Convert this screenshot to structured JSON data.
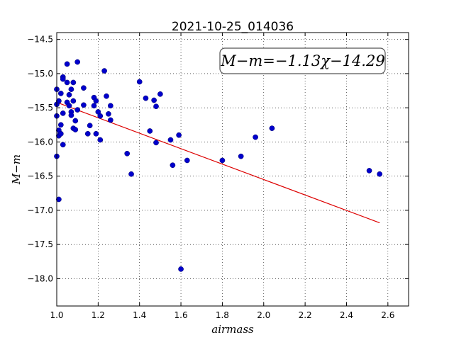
{
  "chart_data": {
    "type": "scatter",
    "title": "2021-10-25_014036",
    "xlabel": "airmass",
    "ylabel": "M−m",
    "xlim": [
      1.0,
      2.7
    ],
    "ylim": [
      -18.4,
      -14.4
    ],
    "y_inverted": true,
    "grid": true,
    "xticks": [
      1.0,
      1.2,
      1.4,
      1.6,
      1.8,
      2.0,
      2.2,
      2.4,
      2.6
    ],
    "xtick_labels": [
      "1.0",
      "1.2",
      "1.4",
      "1.6",
      "1.8",
      "2.0",
      "2.2",
      "2.4",
      "2.6"
    ],
    "yticks": [
      -14.5,
      -15.0,
      -15.5,
      -16.0,
      -16.5,
      -17.0,
      -17.5,
      -18.0
    ],
    "ytick_labels": [
      "−14.5",
      "−15.0",
      "−15.5",
      "−16.0",
      "−16.5",
      "−17.0",
      "−17.5",
      "−18.0"
    ],
    "annotation": "M−m=−1.13χ−14.29",
    "point_color": "#0000cc",
    "line_color": "#dd0000",
    "fit": {
      "slope": -1.13,
      "intercept": -14.29,
      "x_range": [
        1.01,
        2.56
      ]
    },
    "points": [
      [
        1.0,
        -15.23
      ],
      [
        1.0,
        -15.45
      ],
      [
        1.0,
        -15.62
      ],
      [
        1.0,
        -16.21
      ],
      [
        1.01,
        -16.84
      ],
      [
        1.01,
        -15.4
      ],
      [
        1.01,
        -15.83
      ],
      [
        1.01,
        -15.91
      ],
      [
        1.02,
        -15.29
      ],
      [
        1.02,
        -15.75
      ],
      [
        1.02,
        -15.88
      ],
      [
        1.03,
        -15.05
      ],
      [
        1.03,
        -15.08
      ],
      [
        1.03,
        -15.58
      ],
      [
        1.03,
        -16.04
      ],
      [
        1.05,
        -14.86
      ],
      [
        1.05,
        -15.13
      ],
      [
        1.05,
        -15.42
      ],
      [
        1.06,
        -15.31
      ],
      [
        1.06,
        -15.47
      ],
      [
        1.07,
        -15.23
      ],
      [
        1.07,
        -15.56
      ],
      [
        1.07,
        -15.61
      ],
      [
        1.08,
        -15.13
      ],
      [
        1.08,
        -15.4
      ],
      [
        1.08,
        -15.8
      ],
      [
        1.09,
        -15.82
      ],
      [
        1.09,
        -15.69
      ],
      [
        1.1,
        -14.83
      ],
      [
        1.1,
        -15.53
      ],
      [
        1.13,
        -15.21
      ],
      [
        1.13,
        -15.46
      ],
      [
        1.15,
        -15.88
      ],
      [
        1.16,
        -15.76
      ],
      [
        1.18,
        -15.35
      ],
      [
        1.18,
        -15.47
      ],
      [
        1.19,
        -15.4
      ],
      [
        1.19,
        -15.88
      ],
      [
        1.2,
        -15.56
      ],
      [
        1.21,
        -15.62
      ],
      [
        1.21,
        -15.97
      ],
      [
        1.23,
        -14.96
      ],
      [
        1.24,
        -15.33
      ],
      [
        1.25,
        -15.59
      ],
      [
        1.26,
        -15.68
      ],
      [
        1.26,
        -15.47
      ],
      [
        1.34,
        -16.17
      ],
      [
        1.36,
        -16.47
      ],
      [
        1.4,
        -15.12
      ],
      [
        1.43,
        -15.36
      ],
      [
        1.45,
        -15.84
      ],
      [
        1.47,
        -15.39
      ],
      [
        1.48,
        -15.48
      ],
      [
        1.48,
        -16.01
      ],
      [
        1.5,
        -15.3
      ],
      [
        1.55,
        -15.97
      ],
      [
        1.56,
        -16.34
      ],
      [
        1.59,
        -15.9
      ],
      [
        1.6,
        -17.86
      ],
      [
        1.63,
        -16.27
      ],
      [
        1.8,
        -16.27
      ],
      [
        1.89,
        -16.21
      ],
      [
        1.96,
        -15.93
      ],
      [
        2.04,
        -15.8
      ],
      [
        2.51,
        -16.42
      ],
      [
        2.56,
        -16.47
      ]
    ]
  }
}
